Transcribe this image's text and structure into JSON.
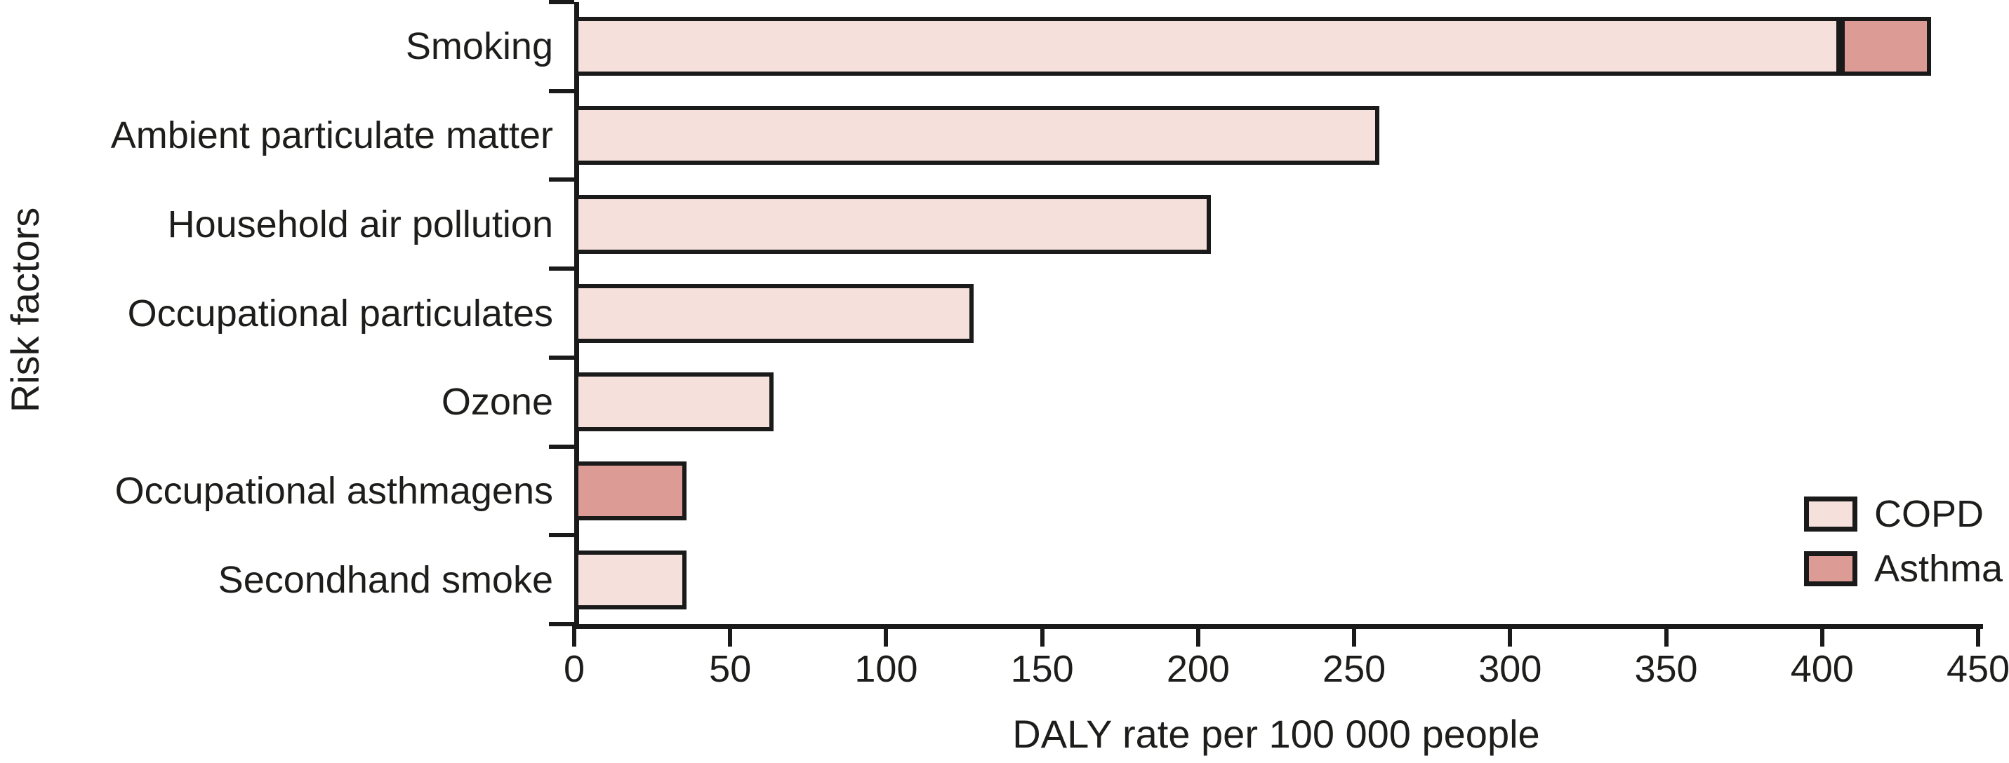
{
  "chart_data": {
    "type": "bar",
    "orientation": "horizontal",
    "xlabel": "DALY rate per 100 000 people",
    "ylabel": "Risk factors",
    "xlim": [
      0,
      450
    ],
    "xticks": [
      0,
      50,
      100,
      150,
      200,
      250,
      300,
      350,
      400,
      450
    ],
    "grid": false,
    "categories": [
      "Smoking",
      "Ambient particulate matter",
      "Household air pollution",
      "Occupational particulates",
      "Ozone",
      "Occupational asthmagens",
      "Secondhand smoke"
    ],
    "series": [
      {
        "name": "COPD",
        "color": "#f5e0dc",
        "values": [
          406,
          258,
          204,
          128,
          64,
          0,
          36
        ]
      },
      {
        "name": "Asthma",
        "color": "#dd9b96",
        "values": [
          29,
          0,
          0,
          0,
          0,
          36,
          0
        ]
      }
    ],
    "legend": {
      "position": "right",
      "entries": [
        {
          "label": "COPD",
          "color": "#f5e0dc"
        },
        {
          "label": "Asthma",
          "color": "#dd9b96"
        }
      ]
    }
  },
  "colors": {
    "axis": "#1a1a1a",
    "text": "#1d1d1b",
    "background": "#ffffff",
    "copd_fill": "#f5e0dc",
    "asthma_fill": "#dd9b96"
  }
}
